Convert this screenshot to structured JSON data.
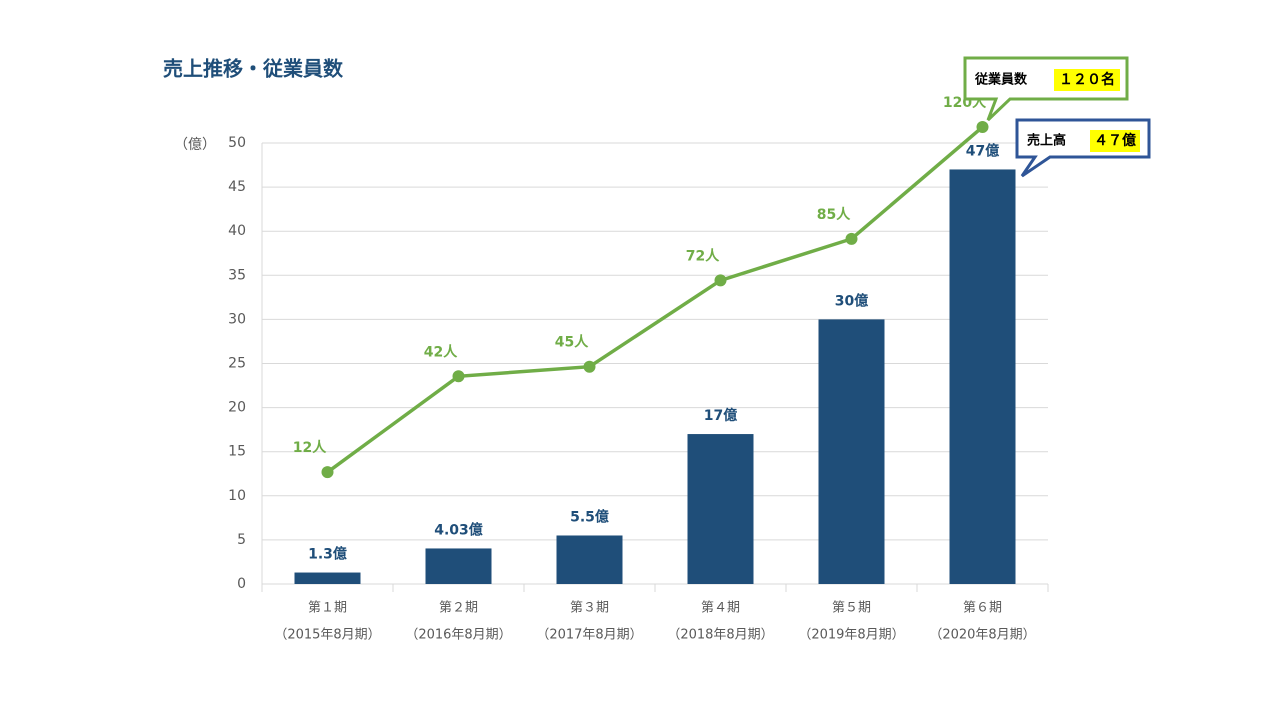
{
  "chart_data": {
    "type": "bar_line",
    "title": "売上推移・従業員数",
    "ylabel": "（億）",
    "categories": [
      "第１期",
      "第２期",
      "第３期",
      "第４期",
      "第５期",
      "第６期"
    ],
    "sub_categories": [
      "（2015年8月期）",
      "（2016年8月期）",
      "（2017年8月期）",
      "（2018年8月期）",
      "（2019年8月期）",
      "（2020年8月期）"
    ],
    "series": [
      {
        "name": "売上高",
        "type": "bar",
        "color": "#1f4e79",
        "values": [
          1.3,
          4.03,
          5.5,
          17,
          30,
          47
        ],
        "value_labels": [
          "1.3億",
          "4.03億",
          "5.5億",
          "17億",
          "30億",
          "47億"
        ]
      },
      {
        "name": "従業員数",
        "type": "line",
        "axis": "y2",
        "color": "#70ad47",
        "values": [
          12,
          42,
          45,
          72,
          85,
          120
        ],
        "value_labels": [
          "12人",
          "42人",
          "45人",
          "72人",
          "85人",
          "120人"
        ]
      }
    ],
    "ylim": [
      0,
      50
    ],
    "yticks": [
      0,
      5,
      10,
      15,
      20,
      25,
      30,
      35,
      40,
      45,
      50
    ],
    "y2lim": [
      -23,
      115
    ],
    "grid": true,
    "annotations": [
      {
        "text": "従業員数",
        "highlight": "１２０名"
      },
      {
        "text": "売上高",
        "highlight": "４７億"
      }
    ]
  }
}
